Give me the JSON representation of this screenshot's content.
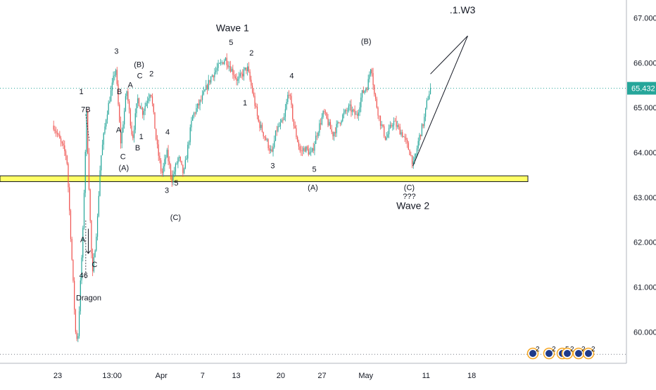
{
  "chart_data": {
    "type": "candlestick",
    "title": "",
    "xlabel": "",
    "ylabel": "",
    "ylim": [
      59.3,
      67.4
    ],
    "price_axis": {
      "ticks": [
        "67.000",
        "66.000",
        "65.000",
        "64.000",
        "63.000",
        "62.000",
        "61.000",
        "60.000"
      ],
      "tick_values": [
        67,
        66,
        65,
        64,
        63,
        62,
        61,
        60
      ],
      "last_price": "65.432",
      "last_price_value": 65.432
    },
    "time_axis": {
      "ticks": [
        "23",
        "13:00",
        "Apr",
        "7",
        "13",
        "20",
        "27",
        "May",
        "11",
        "18"
      ],
      "tick_positions": [
        0.56,
        8.0,
        14.75,
        20.4,
        25.0,
        31.1,
        36.75,
        42.75,
        51.0,
        57.25
      ]
    },
    "candles": [],
    "path_points": [
      [
        0,
        64.6
      ],
      [
        1.8,
        63.9
      ],
      [
        3.0,
        60.0
      ],
      [
        3.3,
        59.8
      ],
      [
        4.0,
        62.2
      ],
      [
        4.5,
        64.9
      ],
      [
        5.0,
        62.5
      ],
      [
        5.3,
        61.2
      ],
      [
        6.0,
        62.5
      ],
      [
        6.4,
        63.8
      ],
      [
        7.2,
        64.8
      ],
      [
        8.5,
        65.9
      ],
      [
        9.2,
        64.2
      ],
      [
        10.0,
        65.4
      ],
      [
        10.8,
        64.3
      ],
      [
        11.5,
        65.2
      ],
      [
        12.2,
        64.9
      ],
      [
        13.3,
        65.4
      ],
      [
        14.1,
        64.2
      ],
      [
        14.8,
        63.5
      ],
      [
        15.5,
        64.0
      ],
      [
        16.2,
        63.4
      ],
      [
        17.1,
        63.9
      ],
      [
        17.8,
        63.5
      ],
      [
        19.0,
        64.8
      ],
      [
        20.3,
        65.2
      ],
      [
        21.6,
        65.7
      ],
      [
        23.5,
        66.1
      ],
      [
        25.2,
        65.6
      ],
      [
        26.5,
        65.9
      ],
      [
        27.3,
        65.3
      ],
      [
        28.0,
        64.7
      ],
      [
        29.3,
        64.2
      ],
      [
        29.9,
        63.95
      ],
      [
        30.5,
        64.5
      ],
      [
        31.5,
        64.7
      ],
      [
        32.2,
        65.4
      ],
      [
        32.9,
        64.6
      ],
      [
        33.8,
        64.0
      ],
      [
        34.4,
        64.1
      ],
      [
        35.3,
        63.95
      ],
      [
        36.0,
        64.4
      ],
      [
        37.0,
        64.9
      ],
      [
        38.2,
        64.4
      ],
      [
        39.5,
        64.8
      ],
      [
        40.5,
        65.0
      ],
      [
        41.5,
        64.8
      ],
      [
        42.2,
        65.3
      ],
      [
        43.0,
        65.5
      ],
      [
        43.5,
        66.0
      ],
      [
        43.9,
        65.3
      ],
      [
        44.7,
        64.7
      ],
      [
        45.5,
        64.3
      ],
      [
        46.5,
        64.7
      ],
      [
        47.8,
        64.4
      ],
      [
        48.8,
        64.0
      ],
      [
        49.3,
        63.7
      ],
      [
        50.0,
        64.3
      ],
      [
        50.7,
        64.7
      ],
      [
        51.2,
        65.2
      ],
      [
        51.6,
        65.432
      ]
    ],
    "support_zone": {
      "low": 63.35,
      "high": 63.48,
      "color": "#ffff66"
    },
    "dotted_levels": [
      65.432,
      59.5
    ],
    "annotations": {
      "wave_labels": [
        {
          "text": "Wave 1",
          "x": 24.5,
          "y": 66.7,
          "size": "big"
        },
        {
          "text": "5",
          "x": 24.3,
          "y": 66.4
        },
        {
          "text": "2",
          "x": 27.1,
          "y": 66.16
        },
        {
          "text": "1",
          "x": 26.2,
          "y": 65.05
        },
        {
          "text": "4",
          "x": 32.6,
          "y": 65.65
        },
        {
          "text": "3",
          "x": 30.0,
          "y": 63.65
        },
        {
          "text": "5",
          "x": 35.7,
          "y": 63.57
        },
        {
          "text": "(A)",
          "x": 35.5,
          "y": 63.16
        },
        {
          "text": "(B)",
          "x": 42.8,
          "y": 66.42
        },
        {
          "text": "(C)",
          "x": 48.7,
          "y": 63.16
        },
        {
          "text": "???",
          "x": 48.7,
          "y": 62.97
        },
        {
          "text": "Wave 2",
          "x": 49.2,
          "y": 62.74,
          "size": "big"
        },
        {
          "text": ".1.W3",
          "x": 56.0,
          "y": 67.1,
          "size": "big"
        },
        {
          "text": "3",
          "x": 8.6,
          "y": 66.2
        },
        {
          "text": "B",
          "x": 9.0,
          "y": 65.3
        },
        {
          "text": "A",
          "x": 10.5,
          "y": 65.45
        },
        {
          "text": "(B)",
          "x": 11.7,
          "y": 65.9
        },
        {
          "text": "C",
          "x": 11.8,
          "y": 65.65
        },
        {
          "text": "2",
          "x": 13.4,
          "y": 65.7
        },
        {
          "text": "1",
          "x": 3.8,
          "y": 65.3
        },
        {
          "text": "7B",
          "x": 4.4,
          "y": 64.9
        },
        {
          "text": "A",
          "x": 8.9,
          "y": 64.45
        },
        {
          "text": "1",
          "x": 12.0,
          "y": 64.3
        },
        {
          "text": "B",
          "x": 11.5,
          "y": 64.05
        },
        {
          "text": "C",
          "x": 9.5,
          "y": 63.85
        },
        {
          "text": "(A)",
          "x": 9.6,
          "y": 63.6
        },
        {
          "text": "4",
          "x": 15.6,
          "y": 64.4
        },
        {
          "text": "3",
          "x": 15.5,
          "y": 63.1
        },
        {
          "text": "5",
          "x": 16.8,
          "y": 63.26
        },
        {
          "text": "(C)",
          "x": 16.7,
          "y": 62.5
        },
        {
          "text": "A",
          "x": 4.0,
          "y": 62.0
        },
        {
          "text": "C",
          "x": 5.6,
          "y": 61.45
        },
        {
          "text": "46",
          "x": 4.1,
          "y": 61.2
        },
        {
          "text": "Dragon",
          "x": 4.8,
          "y": 60.7
        }
      ],
      "lines": [
        {
          "from": [
            49.2,
            63.7
          ],
          "to": [
            56.7,
            66.6
          ]
        },
        {
          "from": [
            51.6,
            65.75
          ],
          "to": [
            56.7,
            66.6
          ]
        }
      ]
    },
    "grid": false,
    "legend": "none",
    "colors": {
      "up": "#26a69a",
      "down": "#ef5350",
      "last_price": "#26a69a",
      "axis_text": "#131722"
    }
  },
  "badges": [
    {
      "name": "badge-1",
      "count": "2"
    },
    {
      "name": "badge-2",
      "count": "2"
    },
    {
      "name": "badge-3",
      "count": "5"
    },
    {
      "name": "badge-4",
      "count": "2"
    },
    {
      "name": "badge-5",
      "count": "2"
    },
    {
      "name": "badge-6",
      "count": "2"
    }
  ]
}
